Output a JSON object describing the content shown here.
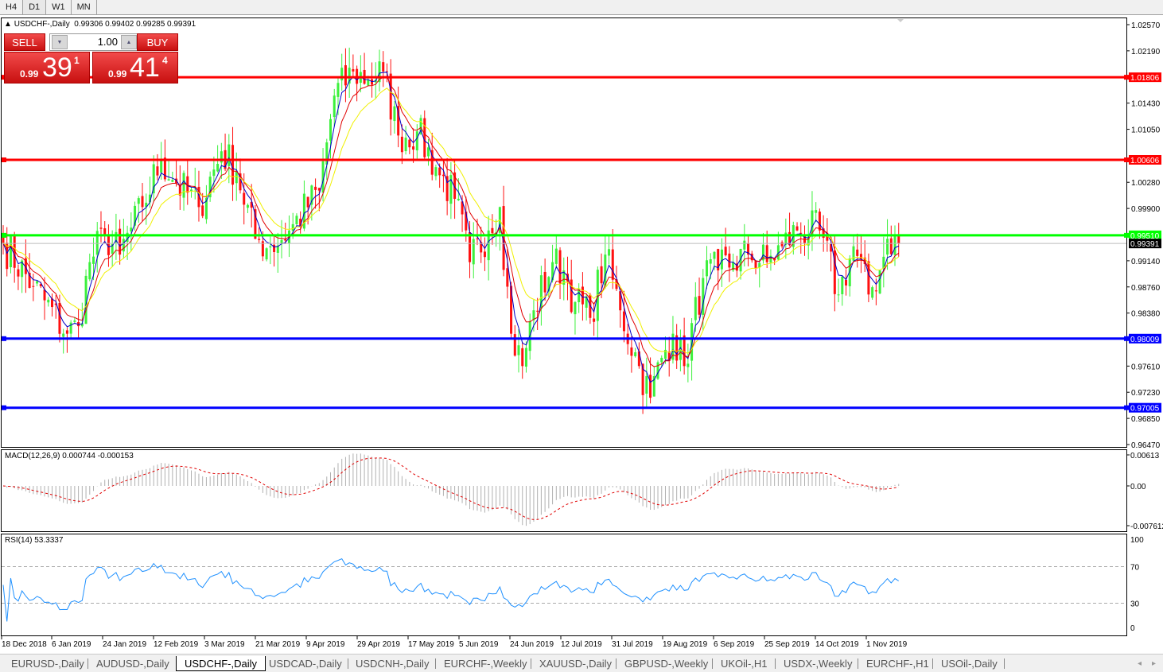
{
  "timeframes": [
    "H4",
    "D1",
    "W1",
    "MN"
  ],
  "active_timeframe": "D1",
  "chart_title": "USDCHF-,Daily",
  "ohlc_readout": "0.99306 0.99402 0.99285 0.99391",
  "trade_panel": {
    "sell_label": "SELL",
    "buy_label": "BUY",
    "lot": "1.00",
    "sell_prefix": "0.99",
    "sell_big": "39",
    "sell_sup": "1",
    "buy_prefix": "0.99",
    "buy_big": "41",
    "buy_sup": "4"
  },
  "price_axis": [
    "1.02570",
    "1.02190",
    "1.01430",
    "1.01050",
    "1.00280",
    "0.99900",
    "0.99140",
    "0.98760",
    "0.98380",
    "0.97610",
    "0.97230",
    "0.96850",
    "0.96470"
  ],
  "levels": [
    {
      "price": "1.01806",
      "color": "#ff0000"
    },
    {
      "price": "1.00606",
      "color": "#ff0000"
    },
    {
      "price": "0.99510",
      "color": "#00ff00"
    },
    {
      "price": "0.98009",
      "color": "#0000ff"
    },
    {
      "price": "0.97005",
      "color": "#0000ff"
    }
  ],
  "bid_price": "0.99391",
  "macd": {
    "label": "MACD(12,26,9) 0.000744 -0.000153",
    "axis": [
      "0.00613",
      "0.00",
      "-0.007612"
    ]
  },
  "rsi": {
    "label": "RSI(14) 53.3337",
    "axis": [
      "100",
      "70",
      "30",
      "0"
    ]
  },
  "date_axis": [
    "18 Dec 2018",
    "6 Jan 2019",
    "24 Jan 2019",
    "12 Feb 2019",
    "3 Mar 2019",
    "21 Mar 2019",
    "9 Apr 2019",
    "29 Apr 2019",
    "17 May 2019",
    "5 Jun 2019",
    "24 Jun 2019",
    "12 Jul 2019",
    "31 Jul 2019",
    "19 Aug 2019",
    "6 Sep 2019",
    "25 Sep 2019",
    "14 Oct 2019",
    "1 Nov 2019"
  ],
  "tabs": [
    "EURUSD-,Daily",
    "AUDUSD-,Daily",
    "USDCHF-,Daily",
    "USDCAD-,Daily",
    "USDCNH-,Daily",
    "EURCHF-,Weekly",
    "XAUUSD-,Daily",
    "GBPUSD-,Weekly",
    "UKOil-,H1",
    "USDX-,Weekly",
    "EURCHF-,H1",
    "USOil-,Daily"
  ],
  "active_tab": "USDCHF-,Daily",
  "chart_data": {
    "type": "candlestick",
    "ylim": [
      0.9647,
      1.0257
    ],
    "close_waypoints": [
      [
        0,
        0.994
      ],
      [
        8,
        0.9877
      ],
      [
        17,
        0.9808
      ],
      [
        20,
        0.9819
      ],
      [
        23,
        0.9912
      ],
      [
        27,
        0.9952
      ],
      [
        31,
        0.9923
      ],
      [
        37,
        0.9992
      ],
      [
        42,
        1.0062
      ],
      [
        46,
        1.0027
      ],
      [
        52,
        0.9992
      ],
      [
        58,
        1.0073
      ],
      [
        62,
        1.0044
      ],
      [
        67,
        0.9946
      ],
      [
        71,
        0.9935
      ],
      [
        76,
        0.9958
      ],
      [
        84,
        1.0016
      ],
      [
        88,
        1.0154
      ],
      [
        93,
        1.0189
      ],
      [
        97,
        1.0177
      ],
      [
        101,
        1.0189
      ],
      [
        105,
        1.0096
      ],
      [
        110,
        1.0102
      ],
      [
        115,
        1.005
      ],
      [
        120,
        1.0004
      ],
      [
        124,
        0.9912
      ],
      [
        129,
        0.9958
      ],
      [
        132,
        0.9992
      ],
      [
        135,
        0.9808
      ],
      [
        138,
        0.9761
      ],
      [
        141,
        0.9842
      ],
      [
        146,
        0.9912
      ],
      [
        149,
        0.99
      ],
      [
        152,
        0.9854
      ],
      [
        156,
        0.9831
      ],
      [
        160,
        0.9923
      ],
      [
        164,
        0.9842
      ],
      [
        169,
        0.9761
      ],
      [
        172,
        0.9715
      ],
      [
        175,
        0.9773
      ],
      [
        178,
        0.9808
      ],
      [
        181,
        0.9761
      ],
      [
        186,
        0.9889
      ],
      [
        190,
        0.99
      ],
      [
        194,
        0.9912
      ],
      [
        198,
        0.9923
      ],
      [
        203,
        0.9912
      ],
      [
        207,
        0.9935
      ],
      [
        211,
        0.9958
      ],
      [
        217,
        0.9958
      ],
      [
        222,
        0.9865
      ],
      [
        226,
        0.9935
      ],
      [
        230,
        0.9865
      ],
      [
        233,
        0.99
      ],
      [
        235,
        0.9946
      ],
      [
        238,
        0.99391
      ]
    ]
  }
}
